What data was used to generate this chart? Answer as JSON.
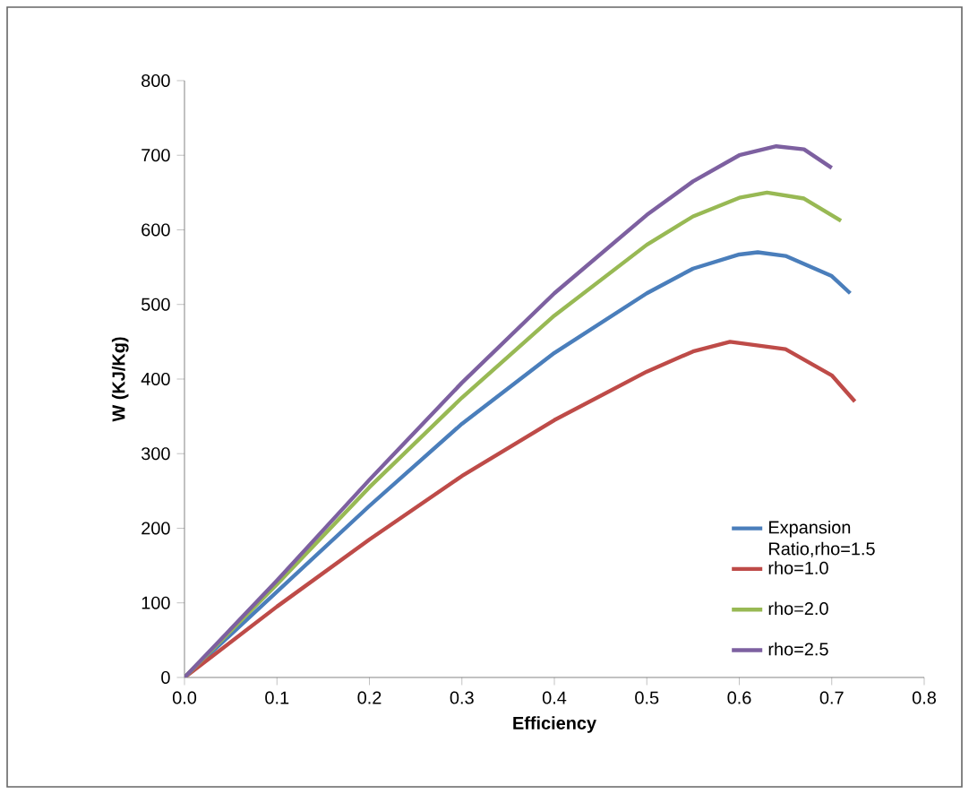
{
  "chart_data": {
    "type": "line",
    "xlabel": "Efficiency",
    "ylabel": "W (KJ/Kg)",
    "xlim": [
      0,
      0.8
    ],
    "xticks": [
      {
        "value": 0,
        "label": "0.0"
      },
      0.1,
      0.2,
      0.3,
      0.4,
      0.5,
      0.6,
      0.7,
      0.8
    ],
    "ylim": [
      0,
      800
    ],
    "yticks": [
      0,
      100,
      200,
      300,
      400,
      500,
      600,
      700,
      800
    ],
    "grid": false,
    "legend": "bottom right",
    "marker": "none",
    "line_style": "solid",
    "series": [
      {
        "name": "Expansion Ratio,rho=1.5",
        "color": "#4a7ebb",
        "x": [
          0,
          0.1,
          0.2,
          0.3,
          0.4,
          0.5,
          0.55,
          0.6,
          0.62,
          0.65,
          0.7,
          0.72
        ],
        "values": [
          0,
          115,
          230,
          340,
          435,
          515,
          548,
          567,
          570,
          565,
          538,
          515
        ]
      },
      {
        "name": "rho=1.0",
        "color": "#be4b48",
        "x": [
          0,
          0.1,
          0.2,
          0.3,
          0.4,
          0.5,
          0.55,
          0.59,
          0.65,
          0.7,
          0.725
        ],
        "values": [
          0,
          95,
          185,
          270,
          345,
          410,
          437,
          450,
          440,
          405,
          370
        ]
      },
      {
        "name": "rho=2.0",
        "color": "#98b954",
        "x": [
          0,
          0.1,
          0.2,
          0.3,
          0.4,
          0.5,
          0.55,
          0.6,
          0.63,
          0.67,
          0.71
        ],
        "values": [
          0,
          125,
          255,
          375,
          485,
          580,
          618,
          643,
          650,
          642,
          612
        ]
      },
      {
        "name": "rho=2.5",
        "color": "#7d60a0",
        "x": [
          0,
          0.1,
          0.2,
          0.3,
          0.4,
          0.5,
          0.55,
          0.6,
          0.64,
          0.67,
          0.7
        ],
        "values": [
          0,
          130,
          265,
          395,
          515,
          620,
          665,
          700,
          712,
          708,
          683
        ]
      }
    ]
  }
}
